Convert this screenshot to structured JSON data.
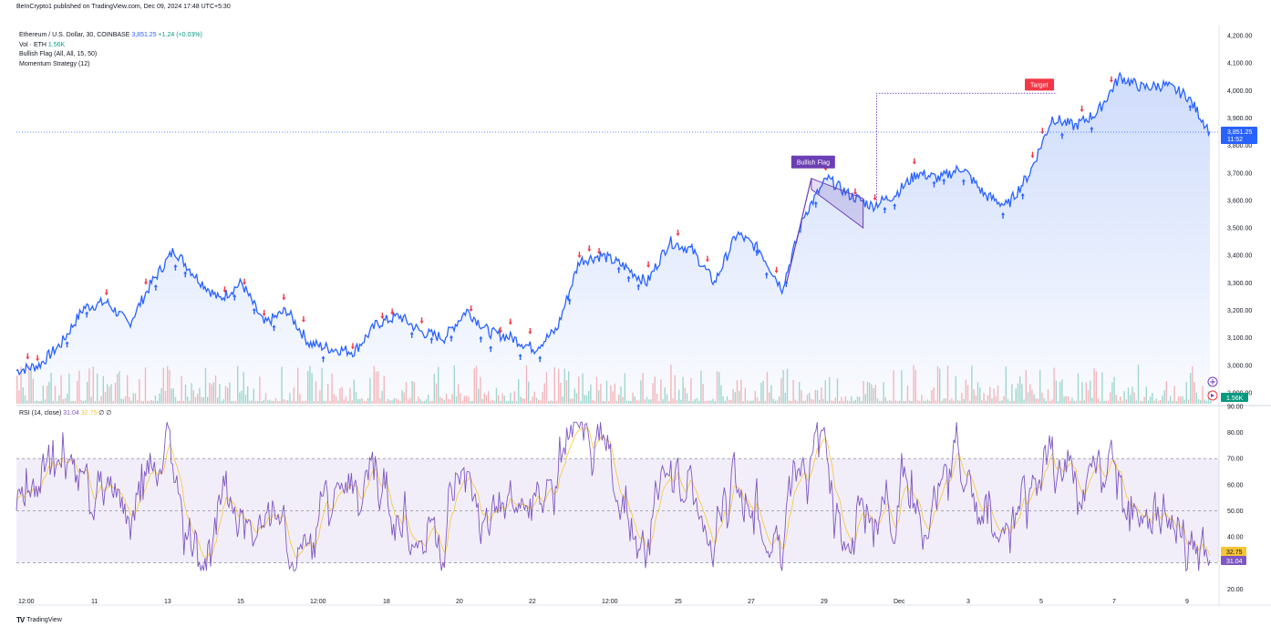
{
  "header": {
    "publisher": "BeInCrypto1 published on TradingView.com, Dec 09, 2024 17:48 UTC+5:30"
  },
  "legend": {
    "symbol": "Ethereum / U.S. Dollar, 30, COINBASE",
    "price": "3,851.25",
    "change": "+1.24 (+0.03%)",
    "vol_label": "Vol · ETH",
    "vol_value": "1.56K",
    "bullish_flag": "Bullish Flag (All, All, 15, 50)",
    "momentum": "Momentum Strategy (12)"
  },
  "rsi_legend": {
    "label": "RSI (14, close)",
    "rsi": "31.04",
    "ma": "32.75",
    "z1": "∅",
    "z2": "∅"
  },
  "labels": {
    "bullish_flag": "Bullish Flag",
    "target": "Target"
  },
  "price_tags": {
    "last": "3,851.25",
    "countdown": "11:52",
    "volume": "1.56K",
    "rsi": "31.04",
    "rsi_ma": "32.75"
  },
  "footer": {
    "brand": "TradingView"
  },
  "colors": {
    "price_line": "#2962ff",
    "area": "#c9d8fb",
    "flag": "#6c3fb4",
    "target": "#f23645",
    "rsi": "#7e57c2",
    "rsi_ma": "#f7c436",
    "up_arrow": "#2962ff",
    "down_arrow": "#f23645"
  },
  "chart_data": {
    "type": "line",
    "price_axis": {
      "ticks": [
        "4,200.00",
        "4,100.00",
        "4,000.00",
        "3,900.00",
        "3,800.00",
        "3,700.00",
        "3,600.00",
        "3,500.00",
        "3,400.00",
        "3,300.00",
        "3,200.00",
        "3,100.00",
        "3,000.00",
        "2,900.00"
      ],
      "ylim": [
        2860,
        4230
      ]
    },
    "rsi_axis": {
      "ticks": [
        "90.00",
        "80.00",
        "70.00",
        "60.00",
        "50.00",
        "40.00",
        "30.00",
        "20.00"
      ],
      "ylim": [
        18,
        90
      ],
      "bands": [
        30,
        50,
        70
      ]
    },
    "time_axis": {
      "ticks": [
        "12:00",
        "11",
        "13",
        "15",
        "12:00",
        "18",
        "20",
        "22",
        "12:00",
        "25",
        "27",
        "29",
        "Dec",
        "3",
        "5",
        "7",
        "9"
      ]
    },
    "price_keypoints": [
      [
        0,
        2980
      ],
      [
        1,
        3000
      ],
      [
        2,
        3080
      ],
      [
        3,
        3210
      ],
      [
        4,
        3230
      ],
      [
        5,
        3150
      ],
      [
        6,
        3300
      ],
      [
        7,
        3420
      ],
      [
        8,
        3320
      ],
      [
        9,
        3240
      ],
      [
        10,
        3300
      ],
      [
        11,
        3150
      ],
      [
        12,
        3200
      ],
      [
        13,
        3080
      ],
      [
        14,
        3060
      ],
      [
        15,
        3050
      ],
      [
        16,
        3150
      ],
      [
        17,
        3180
      ],
      [
        18,
        3120
      ],
      [
        19,
        3100
      ],
      [
        20,
        3200
      ],
      [
        21,
        3120
      ],
      [
        22,
        3100
      ],
      [
        23,
        3060
      ],
      [
        24,
        3130
      ],
      [
        25,
        3380
      ],
      [
        26,
        3400
      ],
      [
        27,
        3360
      ],
      [
        28,
        3300
      ],
      [
        29,
        3450
      ],
      [
        30,
        3420
      ],
      [
        31,
        3300
      ],
      [
        32,
        3480
      ],
      [
        33,
        3420
      ],
      [
        34,
        3280
      ],
      [
        35,
        3550
      ],
      [
        36,
        3680
      ],
      [
        37,
        3620
      ],
      [
        38,
        3580
      ],
      [
        39,
        3620
      ],
      [
        40,
        3700
      ],
      [
        41,
        3680
      ],
      [
        42,
        3720
      ],
      [
        43,
        3620
      ],
      [
        44,
        3580
      ],
      [
        45,
        3700
      ],
      [
        46,
        3900
      ],
      [
        47,
        3870
      ],
      [
        48,
        3920
      ],
      [
        49,
        4050
      ],
      [
        50,
        4010
      ],
      [
        51,
        4020
      ],
      [
        52,
        3980
      ],
      [
        53,
        3851.25
      ]
    ],
    "bullish_flag": {
      "pole_high": 3680,
      "flag_low": 3500
    },
    "target": {
      "level": 3990
    },
    "last_price": 3851.25,
    "rsi_last": 31.04,
    "rsi_ma_last": 32.75
  }
}
